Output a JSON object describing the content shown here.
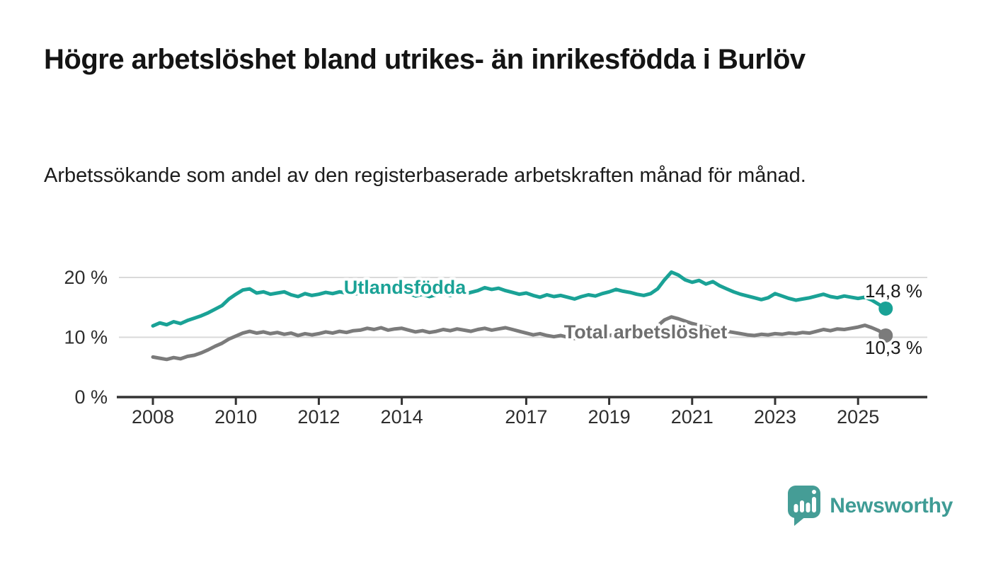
{
  "header": {
    "title": "Högre arbetslöshet bland utrikes- än inrikesfödda i Burlöv",
    "subtitle": "Arbetssökande som andel av den registerbaserade arbetskraften månad för månad."
  },
  "chart_data": {
    "type": "line",
    "title": "Högre arbetslöshet bland utrikes- än inrikesfödda i Burlöv",
    "subtitle": "Arbetssökande som andel av den registerbaserade arbetskraften månad för månad.",
    "x_unit": "year",
    "x_start_year": 2008,
    "x_step_years": 0.1666667,
    "x_tick_years": [
      2008,
      2010,
      2012,
      2014,
      2017,
      2019,
      2021,
      2023,
      2025
    ],
    "x_tick_labels": [
      "2008",
      "2010",
      "2012",
      "2014",
      "2017",
      "2019",
      "2021",
      "2023",
      "2025"
    ],
    "y_ticks": [
      {
        "value": 0,
        "label": "0 %"
      },
      {
        "value": 10,
        "label": "10 %"
      },
      {
        "value": 20,
        "label": "20 %"
      }
    ],
    "ylim": [
      0,
      23
    ],
    "grid": "horizontal",
    "legend_position": "inline-labels",
    "series": [
      {
        "name": "Utlandsfödda",
        "color": "#1aa296",
        "end_label": "14,8 %",
        "end_value": 14.8,
        "values": [
          11.9,
          12.4,
          12.1,
          12.6,
          12.3,
          12.8,
          13.2,
          13.6,
          14.1,
          14.7,
          15.3,
          16.4,
          17.2,
          17.9,
          18.1,
          17.4,
          17.6,
          17.2,
          17.4,
          17.6,
          17.1,
          16.8,
          17.3,
          17.0,
          17.2,
          17.5,
          17.3,
          17.6,
          17.4,
          17.2,
          17.4,
          17.7,
          18.0,
          17.6,
          17.9,
          17.5,
          17.7,
          17.3,
          16.9,
          17.2,
          16.8,
          17.1,
          17.3,
          17.0,
          17.4,
          17.2,
          17.5,
          17.8,
          18.3,
          18.0,
          18.2,
          17.8,
          17.5,
          17.2,
          17.4,
          17.0,
          16.7,
          17.1,
          16.8,
          17.0,
          16.7,
          16.4,
          16.8,
          17.1,
          16.9,
          17.3,
          17.6,
          18.0,
          17.7,
          17.5,
          17.2,
          17.0,
          17.3,
          18.1,
          19.6,
          20.9,
          20.4,
          19.6,
          19.2,
          19.5,
          18.9,
          19.3,
          18.6,
          18.1,
          17.6,
          17.2,
          16.9,
          16.6,
          16.3,
          16.6,
          17.3,
          16.9,
          16.5,
          16.2,
          16.4,
          16.6,
          16.9,
          17.2,
          16.8,
          16.6,
          16.9,
          16.7,
          16.5,
          16.7,
          16.2,
          15.5,
          14.8
        ]
      },
      {
        "name": "Total arbetslöshet",
        "color": "#7b7b7b",
        "end_label": "10,3 %",
        "end_value": 10.3,
        "values": [
          6.7,
          6.5,
          6.3,
          6.6,
          6.4,
          6.8,
          7.0,
          7.4,
          7.9,
          8.5,
          9.0,
          9.7,
          10.2,
          10.7,
          11.0,
          10.7,
          10.9,
          10.6,
          10.8,
          10.5,
          10.7,
          10.3,
          10.6,
          10.4,
          10.6,
          10.9,
          10.7,
          11.0,
          10.8,
          11.1,
          11.2,
          11.5,
          11.3,
          11.6,
          11.2,
          11.4,
          11.5,
          11.2,
          10.9,
          11.1,
          10.8,
          11.0,
          11.3,
          11.1,
          11.4,
          11.2,
          11.0,
          11.3,
          11.5,
          11.2,
          11.4,
          11.6,
          11.3,
          11.0,
          10.7,
          10.4,
          10.6,
          10.3,
          10.1,
          10.3,
          10.0,
          9.8,
          10.1,
          9.9,
          10.2,
          10.0,
          10.3,
          10.5,
          10.4,
          10.6,
          10.4,
          10.7,
          11.0,
          11.9,
          12.9,
          13.4,
          13.1,
          12.7,
          12.3,
          12.0,
          11.8,
          11.5,
          11.2,
          11.0,
          10.8,
          10.6,
          10.4,
          10.3,
          10.5,
          10.4,
          10.6,
          10.5,
          10.7,
          10.6,
          10.8,
          10.7,
          11.0,
          11.3,
          11.1,
          11.4,
          11.3,
          11.5,
          11.7,
          12.0,
          11.6,
          11.1,
          10.3
        ]
      }
    ]
  },
  "footer": {
    "brand": "Newsworthy"
  },
  "colors": {
    "accent_teal": "#1aa296",
    "series_gray": "#7b7b7b",
    "logo_teal": "#459d96",
    "grid": "#d9d9d9",
    "axis": "#333333",
    "text": "#141414"
  }
}
